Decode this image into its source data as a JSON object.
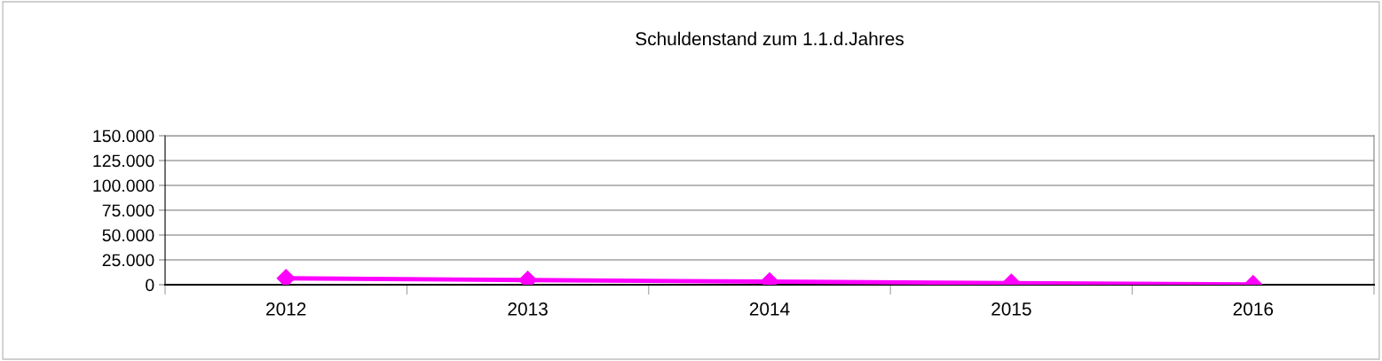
{
  "chart_data": {
    "type": "line",
    "title": "Schuldenstand zum 1.1.d.Jahres",
    "categories": [
      "2012",
      "2013",
      "2014",
      "2015",
      "2016"
    ],
    "series": [
      {
        "color": "#ff00ff",
        "values": [
          6500,
          4700,
          3100,
          1700,
          300
        ]
      }
    ],
    "ylim": [
      0,
      150000
    ],
    "yticks": [
      {
        "value": 0,
        "label": "0"
      },
      {
        "value": 25000,
        "label": "25.000"
      },
      {
        "value": 50000,
        "label": "50.000"
      },
      {
        "value": 75000,
        "label": "75.000"
      },
      {
        "value": 100000,
        "label": "100.000"
      },
      {
        "value": 125000,
        "label": "125.000"
      },
      {
        "value": 150000,
        "label": "150.000"
      }
    ],
    "grid": "y",
    "marker": "diamond",
    "line_style": "solid",
    "legend": false
  }
}
